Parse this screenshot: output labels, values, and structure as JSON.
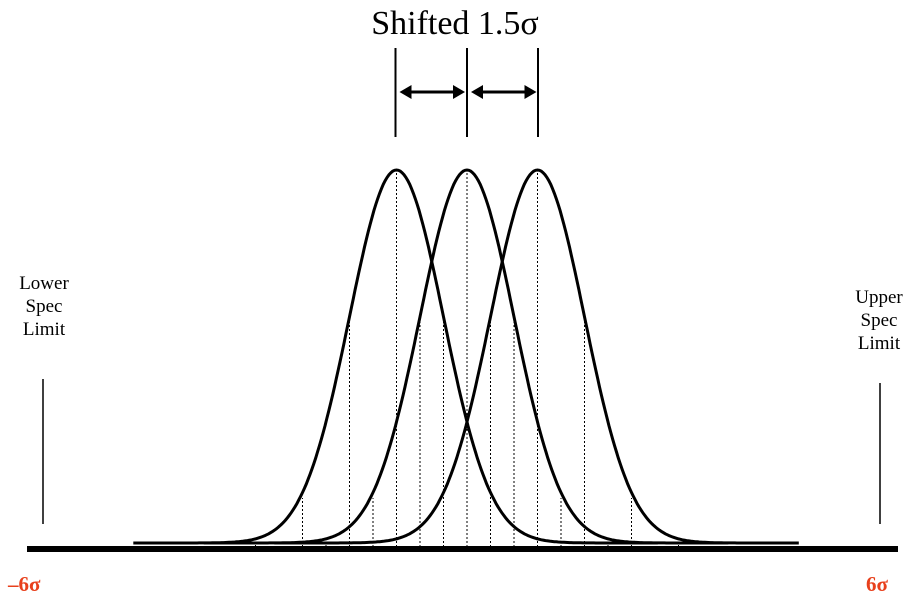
{
  "title": "Shifted 1.5σ",
  "lower_spec": [
    "Lower",
    "Spec",
    "Limit"
  ],
  "upper_spec": [
    "Upper",
    "Spec",
    "Limit"
  ],
  "axis": {
    "left_label": "–6σ",
    "right_label": "6σ",
    "label_color": "#e8401c"
  },
  "diagram": {
    "curve_means_sigma": [
      -1.5,
      0,
      1.5
    ],
    "shift_sigma": 1.5,
    "axis_range_sigma": [
      -6,
      6
    ],
    "dotted_gridlines_sigma_offsets": [
      -4,
      -3,
      -2,
      -1,
      0,
      1,
      2,
      3,
      4
    ],
    "line_color": "#000000"
  }
}
